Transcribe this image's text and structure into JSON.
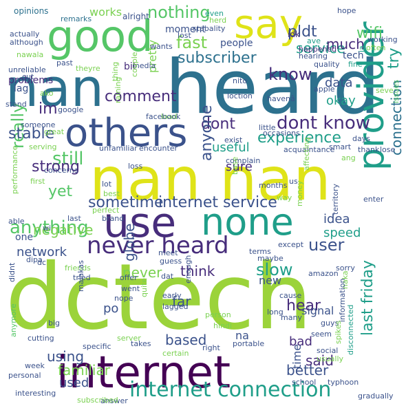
{
  "colors": {
    "lime": "#9bd33a",
    "green": "#55c667",
    "teal": "#1f9e89",
    "blue": "#2d718e",
    "navy": "#3b528b",
    "purple": "#472d7b",
    "dark": "#440154",
    "yellow": "#dfe318",
    "mint": "#7ad151"
  },
  "words": [
    {
      "text": "heard"
    },
    {
      "text": "nan"
    },
    {
      "text": "nan nan"
    },
    {
      "text": "dctech"
    },
    {
      "text": "internet"
    },
    {
      "text": "say"
    },
    {
      "text": "good"
    },
    {
      "text": "others"
    },
    {
      "text": "use"
    },
    {
      "text": "none"
    },
    {
      "text": "provider"
    },
    {
      "text": "never heard"
    },
    {
      "text": "internet service"
    },
    {
      "text": "internet connection"
    },
    {
      "text": "dont know"
    },
    {
      "text": "dont"
    },
    {
      "text": "experience"
    },
    {
      "text": "subscriber"
    },
    {
      "text": "comment"
    },
    {
      "text": "anything"
    },
    {
      "text": "still"
    },
    {
      "text": "connection"
    },
    {
      "text": "sometime"
    },
    {
      "text": "fast"
    },
    {
      "text": "know"
    },
    {
      "text": "nothing"
    },
    {
      "text": "wifi"
    },
    {
      "text": "service"
    },
    {
      "text": "pldt"
    },
    {
      "text": "much"
    },
    {
      "text": "really"
    },
    {
      "text": "strong"
    },
    {
      "text": "stable"
    },
    {
      "text": "user"
    },
    {
      "text": "slow"
    },
    {
      "text": "think"
    },
    {
      "text": "using"
    },
    {
      "text": "last friday"
    },
    {
      "text": "based"
    },
    {
      "text": "familiar"
    },
    {
      "text": "better"
    },
    {
      "text": "said"
    },
    {
      "text": "hear"
    },
    {
      "text": "globe"
    },
    {
      "text": "im"
    },
    {
      "text": "try"
    },
    {
      "text": "anyone"
    },
    {
      "text": "yet"
    },
    {
      "text": "negative"
    },
    {
      "text": "network"
    },
    {
      "text": "useful"
    },
    {
      "text": "sure"
    },
    {
      "text": "data"
    },
    {
      "text": "okay"
    },
    {
      "text": "idea"
    },
    {
      "text": "speed"
    },
    {
      "text": "far"
    },
    {
      "text": "never"
    },
    {
      "text": "na"
    },
    {
      "text": "po"
    },
    {
      "text": "bad"
    },
    {
      "text": "used"
    },
    {
      "text": "time"
    },
    {
      "text": "works"
    },
    {
      "text": "moment"
    },
    {
      "text": "people"
    },
    {
      "text": "bit"
    },
    {
      "text": "pretty"
    },
    {
      "text": "lag"
    },
    {
      "text": "problems"
    },
    {
      "text": "tech"
    },
    {
      "text": "signal"
    },
    {
      "text": "new"
    },
    {
      "text": "one"
    },
    {
      "text": "opinions"
    },
    {
      "text": "remarks"
    },
    {
      "text": "alright"
    },
    {
      "text": "even"
    },
    {
      "text": "herd"
    },
    {
      "text": "lost"
    },
    {
      "text": "stabality"
    },
    {
      "text": "hope"
    },
    {
      "text": "ave"
    },
    {
      "text": "happened"
    },
    {
      "text": "idk"
    },
    {
      "text": "hearing"
    },
    {
      "text": "working"
    },
    {
      "text": "often"
    },
    {
      "text": "actually"
    },
    {
      "text": "although"
    },
    {
      "text": "wants"
    },
    {
      "text": "nawala"
    },
    {
      "text": "unreliable"
    },
    {
      "text": "past"
    },
    {
      "text": "theyre"
    },
    {
      "text": "media"
    },
    {
      "text": "quality"
    },
    {
      "text": "fine"
    },
    {
      "text": "ia"
    },
    {
      "text": "cut"
    },
    {
      "text": "ako"
    },
    {
      "text": "thing"
    },
    {
      "text": "couple"
    },
    {
      "text": "nito"
    },
    {
      "text": "apple"
    },
    {
      "text": "seve"
    },
    {
      "text": "stand"
    },
    {
      "text": "google"
    },
    {
      "text": "raining"
    },
    {
      "text": "load"
    },
    {
      "text": "facebook"
    },
    {
      "text": "loction"
    },
    {
      "text": "havenâ"
    },
    {
      "text": "someone"
    },
    {
      "text": "great"
    },
    {
      "text": "little"
    },
    {
      "text": "occasions"
    },
    {
      "text": "exist"
    },
    {
      "text": "days"
    },
    {
      "text": "issues"
    },
    {
      "text": "performance"
    },
    {
      "text": "serving"
    },
    {
      "text": "unfamiliar"
    },
    {
      "text": "encounter"
    },
    {
      "text": "acquaintance"
    },
    {
      "text": "smart"
    },
    {
      "text": "thank"
    },
    {
      "text": "lose"
    },
    {
      "text": "ang"
    },
    {
      "text": "complain"
    },
    {
      "text": "concerns"
    },
    {
      "text": "first"
    },
    {
      "text": "loss"
    },
    {
      "text": "base"
    },
    {
      "text": "us"
    },
    {
      "text": "affecting"
    },
    {
      "text": "lot"
    },
    {
      "text": "months"
    },
    {
      "text": "best"
    },
    {
      "text": "perfect"
    },
    {
      "text": "enter"
    },
    {
      "text": "brand"
    },
    {
      "text": "way"
    },
    {
      "text": "money"
    },
    {
      "text": "last"
    },
    {
      "text": "territory"
    },
    {
      "text": "able"
    },
    {
      "text": "wi"
    },
    {
      "text": "dipa"
    },
    {
      "text": "dc"
    },
    {
      "text": "friends"
    },
    {
      "text": "meet"
    },
    {
      "text": "guess"
    },
    {
      "text": "maybe"
    },
    {
      "text": "except"
    },
    {
      "text": "terms"
    },
    {
      "text": "tried"
    },
    {
      "text": "offer"
    },
    {
      "text": "dat"
    },
    {
      "text": "amazon"
    },
    {
      "text": "sorry"
    },
    {
      "text": "didnt"
    },
    {
      "text": "enough"
    },
    {
      "text": "malakas"
    },
    {
      "text": "nope"
    },
    {
      "text": "early"
    },
    {
      "text": "cause"
    },
    {
      "text": "naka"
    },
    {
      "text": "went"
    },
    {
      "text": "person"
    },
    {
      "text": "quite"
    },
    {
      "text": "lagged"
    },
    {
      "text": "hindi"
    },
    {
      "text": "long"
    },
    {
      "text": "many"
    },
    {
      "text": "anymore"
    },
    {
      "text": "big"
    },
    {
      "text": "guys"
    },
    {
      "text": "seem"
    },
    {
      "text": "information"
    },
    {
      "text": "cutting"
    },
    {
      "text": "server"
    },
    {
      "text": "specific"
    },
    {
      "text": "takes"
    },
    {
      "text": "right"
    },
    {
      "text": "portable"
    },
    {
      "text": "social"
    },
    {
      "text": "spikes"
    },
    {
      "text": "usually"
    },
    {
      "text": "week"
    },
    {
      "text": "certain"
    },
    {
      "text": "disconnected"
    },
    {
      "text": "personal"
    },
    {
      "text": "school"
    },
    {
      "text": "typhoon"
    },
    {
      "text": "interesting"
    },
    {
      "text": "answer"
    },
    {
      "text": "subscribed"
    },
    {
      "text": "gradually"
    }
  ]
}
